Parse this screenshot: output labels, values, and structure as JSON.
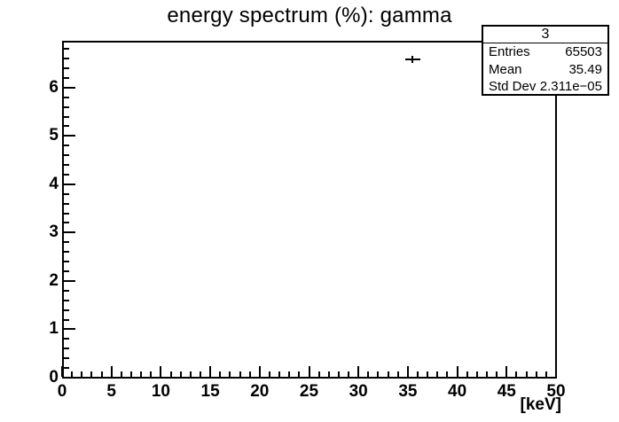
{
  "title": "energy spectrum (%): gamma",
  "colors": {
    "foreground": "#000000",
    "background": "#ffffff"
  },
  "stats_box": {
    "header": "3",
    "rows": [
      {
        "label": "Entries",
        "value": "65503"
      },
      {
        "label": "Mean",
        "value": "35.49"
      },
      {
        "label": "Std Dev",
        "value": "2.311e−05"
      }
    ]
  },
  "chart_data": {
    "type": "scatter",
    "title": "energy spectrum (%): gamma",
    "xlabel": "[keV]",
    "ylabel": "",
    "xlim": [
      0,
      50
    ],
    "ylim": [
      0,
      6.95
    ],
    "x_tick_labels": [
      "0",
      "5",
      "10",
      "15",
      "20",
      "25",
      "30",
      "35",
      "40",
      "45",
      "50"
    ],
    "y_tick_labels": [
      "0",
      "1",
      "2",
      "3",
      "4",
      "5",
      "6"
    ],
    "x_major_step": 5,
    "x_minor_step": 1,
    "y_major_step": 1,
    "y_minor_step": 0.2,
    "grid": false,
    "legend": false,
    "series": [
      {
        "name": "3",
        "style": "error-bar-point",
        "points": [
          {
            "x": 35.49,
            "y": 6.57,
            "xerr": 0.75,
            "yerr": 0.07
          }
        ]
      }
    ],
    "stats": {
      "name": "3",
      "entries": 65503,
      "mean": 35.49,
      "std_dev": "2.311e−05"
    }
  }
}
